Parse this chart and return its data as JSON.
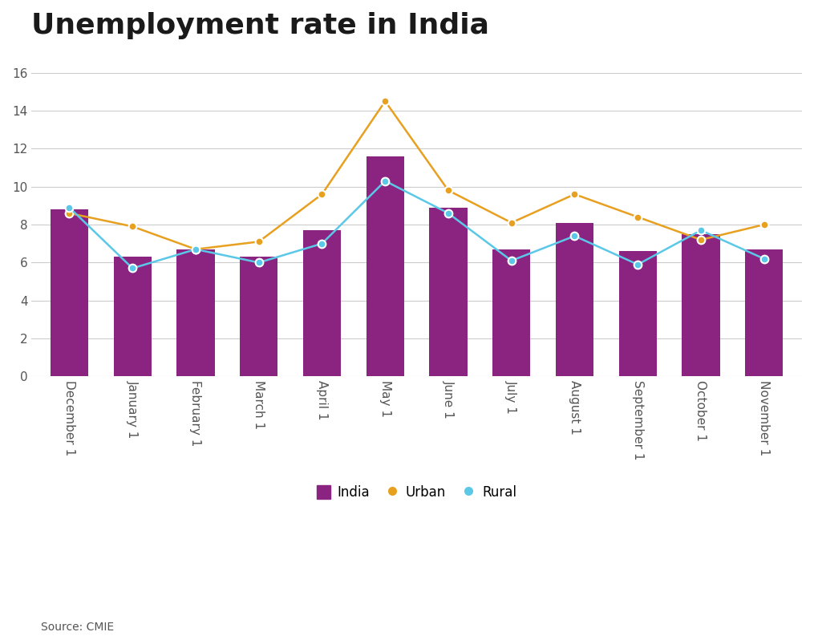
{
  "title": "Unemployment rate in India",
  "categories": [
    "December 1",
    "January 1",
    "February 1",
    "March 1",
    "April 1",
    "May 1",
    "June 1",
    "July 1",
    "August 1",
    "September 1",
    "October 1",
    "November 1"
  ],
  "india_bars": [
    8.8,
    6.3,
    6.7,
    6.3,
    7.7,
    11.6,
    8.9,
    6.7,
    8.1,
    6.6,
    7.5,
    6.7
  ],
  "urban_line": [
    8.6,
    7.9,
    6.7,
    7.1,
    9.6,
    14.5,
    9.8,
    8.1,
    9.6,
    8.4,
    7.2,
    8.0
  ],
  "rural_line": [
    8.9,
    5.7,
    6.7,
    6.0,
    7.0,
    10.3,
    8.6,
    6.1,
    7.4,
    5.9,
    7.7,
    6.2
  ],
  "bar_color": "#8B2381",
  "urban_color": "#E8A020",
  "rural_color": "#5BC8E8",
  "ylim": [
    0,
    17
  ],
  "yticks": [
    0,
    2,
    4,
    6,
    8,
    10,
    12,
    14,
    16
  ],
  "background_color": "#ffffff",
  "grid_color": "#cccccc",
  "source_text": "Source: CMIE",
  "legend_labels": [
    "India",
    "Urban",
    "Rural"
  ],
  "title_fontsize": 26,
  "axis_fontsize": 11
}
